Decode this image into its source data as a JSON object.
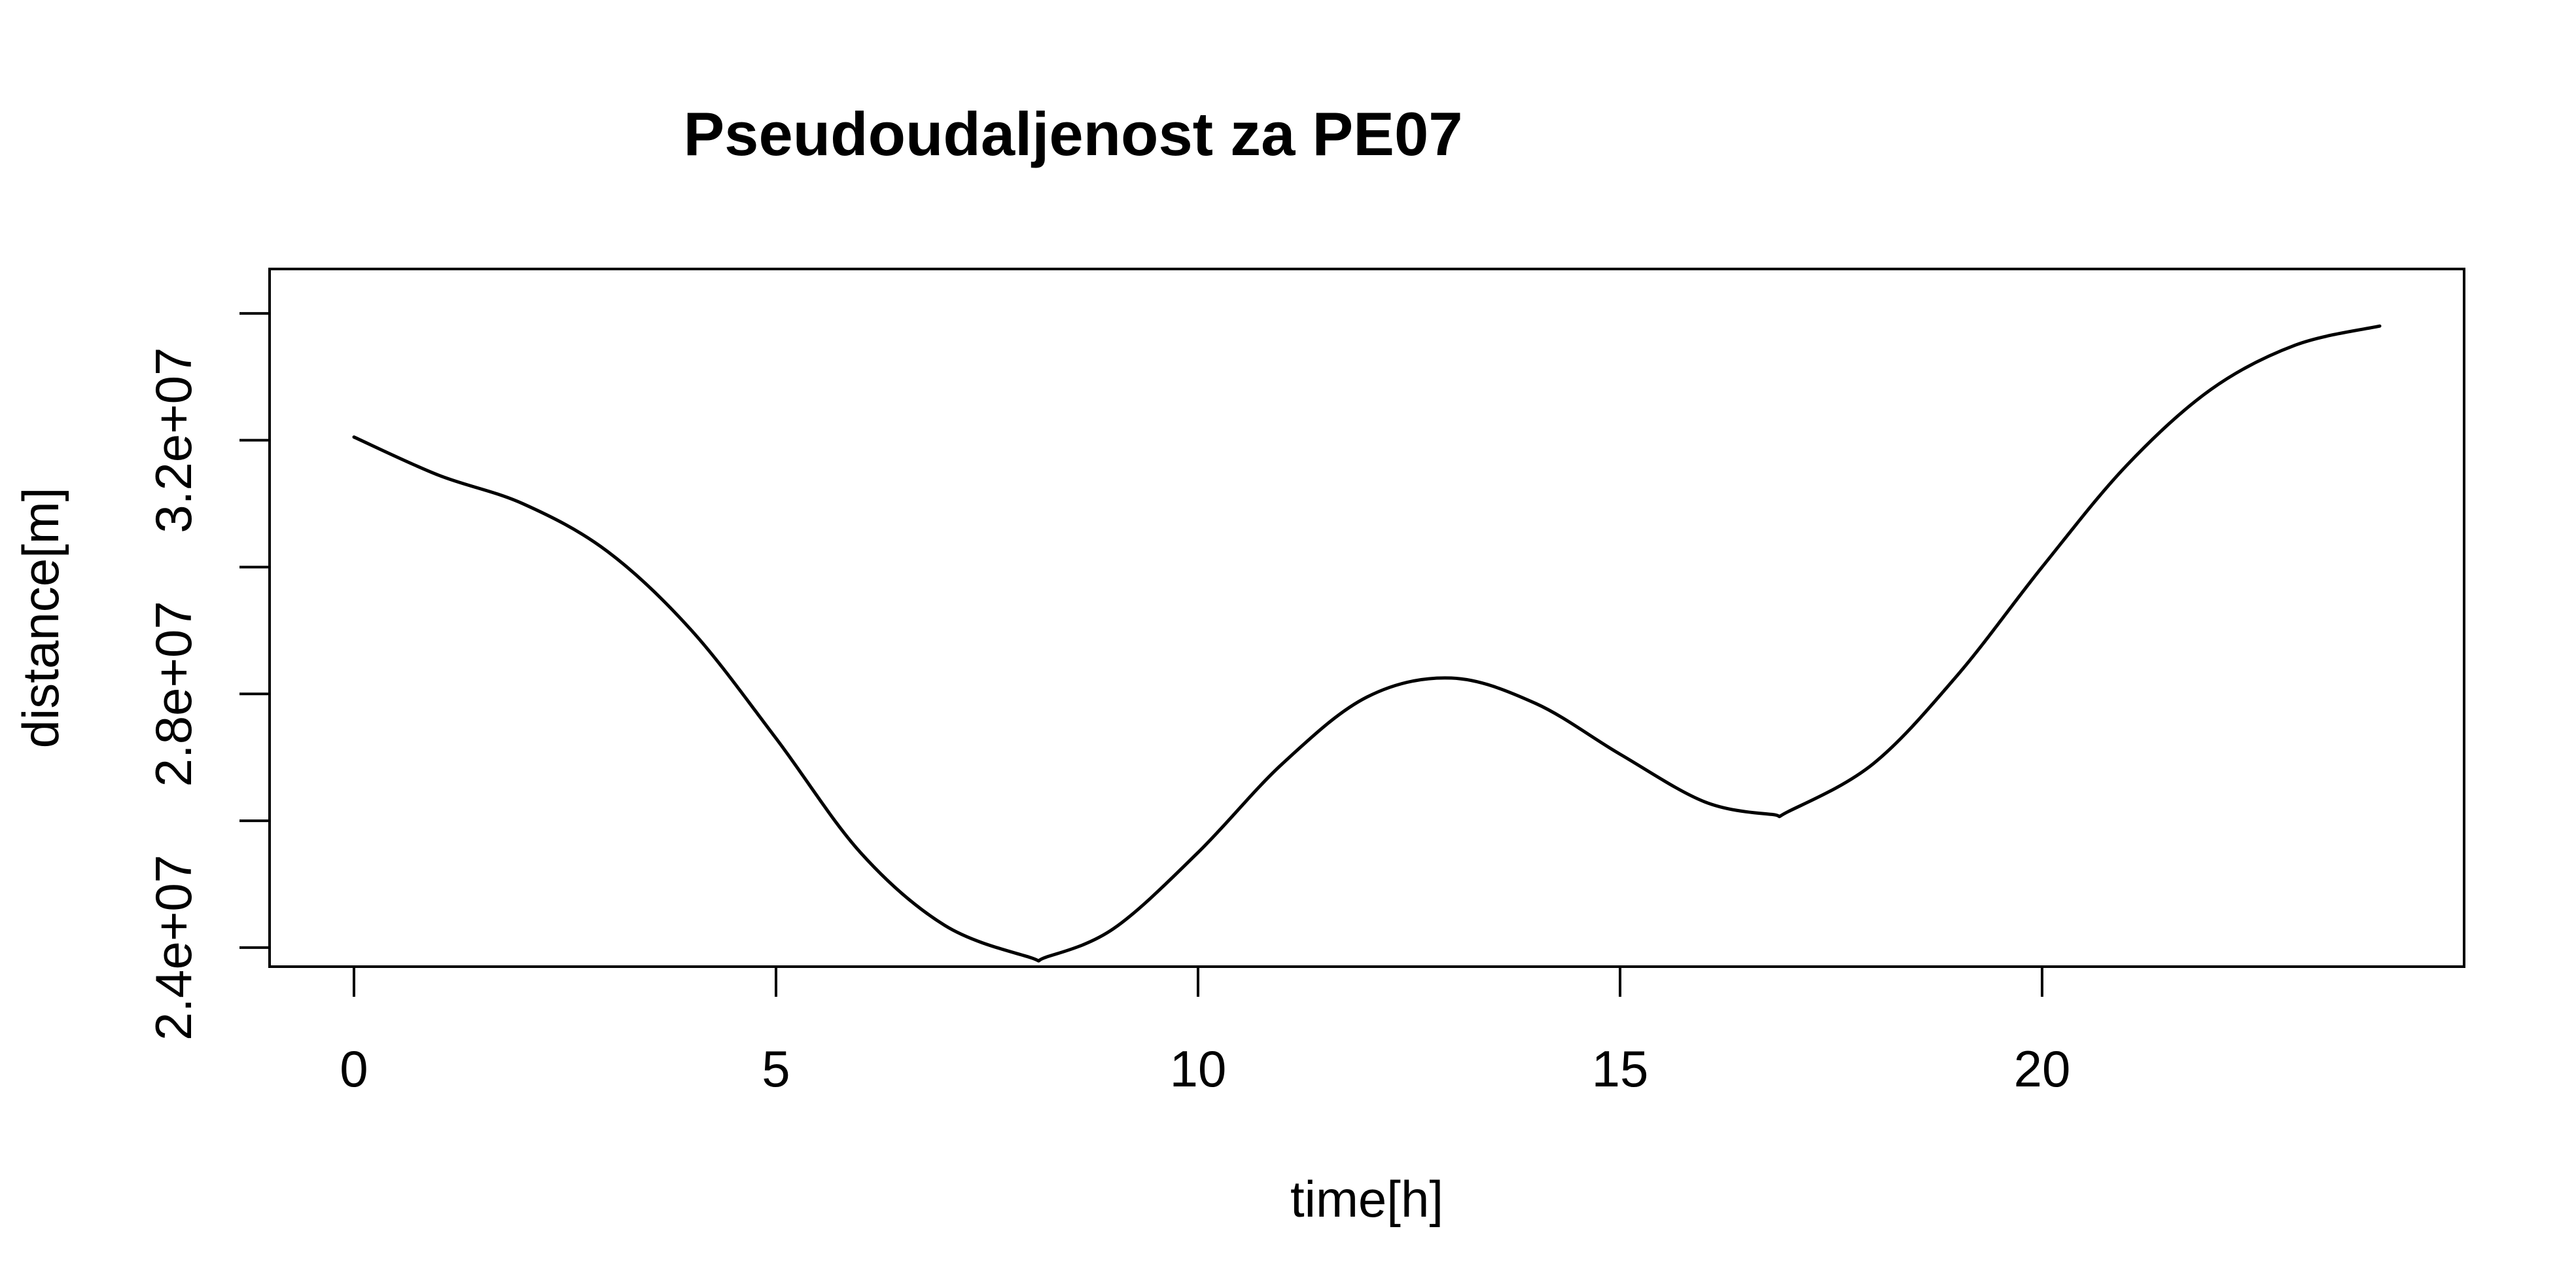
{
  "chart_data": {
    "type": "line",
    "title": "Pseudoudaljenost za PE07",
    "xlabel": "time[h]",
    "ylabel": "distance[m]",
    "xlim": [
      -1,
      25
    ],
    "ylim": [
      23700000,
      34700000
    ],
    "x_ticks": [
      0,
      5,
      10,
      15,
      20
    ],
    "x_tick_labels": [
      "0",
      "5",
      "10",
      "15",
      "20"
    ],
    "y_ticks": [
      24000000,
      26000000,
      28000000,
      30000000,
      32000000,
      34000000
    ],
    "y_tick_labels": [
      "2.4e+07",
      "",
      "2.8e+07",
      "",
      "3.2e+07",
      ""
    ],
    "grid": false,
    "legend": "none",
    "color": "#000000",
    "series": [
      {
        "x": [
          0,
          1,
          2,
          3,
          4,
          5,
          6,
          7,
          8,
          8.2,
          9,
          10,
          11,
          12,
          13,
          14,
          15,
          16,
          16.8,
          17,
          18,
          19,
          20,
          21,
          22,
          23,
          24
        ],
        "values": [
          32050000,
          31450000,
          31000000,
          30250000,
          29000000,
          27300000,
          25500000,
          24350000,
          23850000,
          23850000,
          24300000,
          25500000,
          26900000,
          27950000,
          28250000,
          27850000,
          27050000,
          26300000,
          26100000,
          26150000,
          26900000,
          28300000,
          30000000,
          31600000,
          32800000,
          33500000,
          33800000
        ]
      }
    ]
  }
}
